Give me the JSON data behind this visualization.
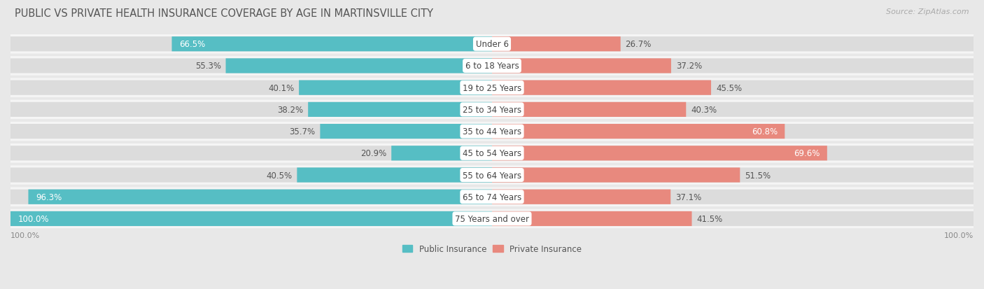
{
  "title": "PUBLIC VS PRIVATE HEALTH INSURANCE COVERAGE BY AGE IN MARTINSVILLE CITY",
  "source": "Source: ZipAtlas.com",
  "categories": [
    "Under 6",
    "6 to 18 Years",
    "19 to 25 Years",
    "25 to 34 Years",
    "35 to 44 Years",
    "45 to 54 Years",
    "55 to 64 Years",
    "65 to 74 Years",
    "75 Years and over"
  ],
  "public_values": [
    66.5,
    55.3,
    40.1,
    38.2,
    35.7,
    20.9,
    40.5,
    96.3,
    100.0
  ],
  "private_values": [
    26.7,
    37.2,
    45.5,
    40.3,
    60.8,
    69.6,
    51.5,
    37.1,
    41.5
  ],
  "public_color": "#56bec4",
  "private_color": "#e8897e",
  "background_color": "#e8e8e8",
  "row_bg_color": "#f5f5f5",
  "bar_bg_color": "#dcdcdc",
  "max_value": 100.0,
  "title_fontsize": 10.5,
  "label_fontsize": 8.5,
  "source_fontsize": 8,
  "legend_fontsize": 8.5,
  "axis_label_fontsize": 8
}
